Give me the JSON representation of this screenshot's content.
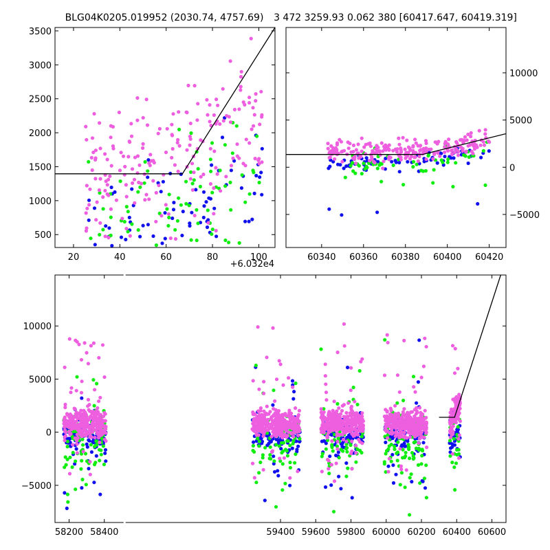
{
  "titles": {
    "left": "BLG04K0205.019952 (2030.74, 4757.69)",
    "right": "3 472 3259.93 0.062 380 [60417.647, 60419.319]"
  },
  "colors": {
    "pink": "#ee5fe0",
    "blue": "#1111ee",
    "green": "#10ee10",
    "model": "#000000"
  },
  "chart_data": [
    {
      "id": "zoom-left",
      "type": "scatter",
      "x_offset_label": "+6.032e4",
      "xlim": [
        12,
        107
      ],
      "ylim": [
        310,
        3550
      ],
      "xticks": [
        20,
        40,
        60,
        80,
        100
      ],
      "yticks": [
        500,
        1000,
        1500,
        2000,
        2500,
        3000,
        3500
      ],
      "ytick_side": "left",
      "model_line": {
        "x": [
          12,
          67,
          107
        ],
        "y": [
          1395,
          1395,
          3550
        ]
      }
    },
    {
      "id": "zoom-right",
      "type": "scatter",
      "xlim": [
        60323,
        60428
      ],
      "ylim": [
        -8500,
        14800
      ],
      "xticks": [
        60340,
        60360,
        60380,
        60400,
        60420
      ],
      "yticks": [
        -5000,
        0,
        5000,
        10000
      ],
      "ytick_side": "right",
      "model_line": {
        "x": [
          60323,
          60388,
          60428
        ],
        "y": [
          1350,
          1350,
          3550
        ]
      }
    },
    {
      "id": "full-lightcurve",
      "type": "scatter",
      "xlim": [
        58120,
        60680
      ],
      "ylim": [
        -8500,
        14800
      ],
      "xticks": [
        58200,
        58400,
        59400,
        59600,
        59800,
        60000,
        60200,
        60400,
        60600
      ],
      "yticks": [
        -5000,
        0,
        5000,
        10000
      ],
      "ytick_side": "left",
      "segment_breaks": [
        [
          58450,
          58630
        ],
        [
          58630,
          59270
        ]
      ],
      "model_line": {
        "x": [
          60300,
          60388,
          60650
        ],
        "y": [
          1400,
          1400,
          14800
        ]
      },
      "seasons": [
        {
          "start": 58170,
          "end": 58410,
          "center": 0
        },
        {
          "start": 59240,
          "end": 59510,
          "center": 0
        },
        {
          "start": 59630,
          "end": 59870,
          "center": 0
        },
        {
          "start": 59990,
          "end": 60230,
          "center": 0
        },
        {
          "start": 60360,
          "end": 60420,
          "center": 0
        }
      ]
    }
  ]
}
